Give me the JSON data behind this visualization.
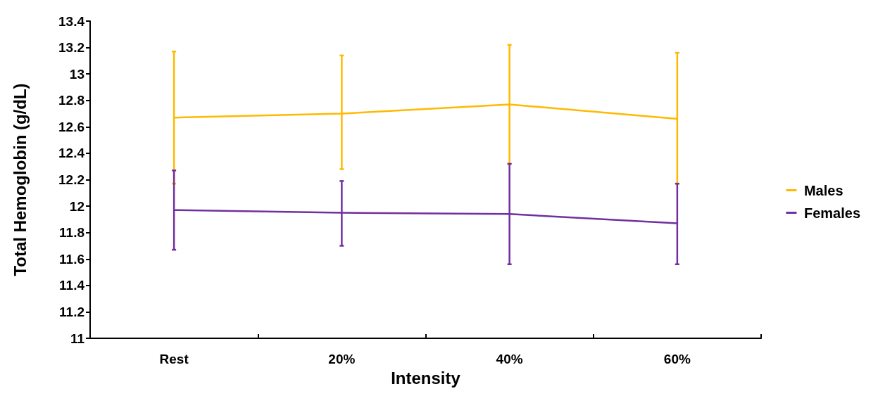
{
  "chart_data": {
    "type": "line",
    "xlabel": "Intensity",
    "ylabel": "Total Hemoglobin (g/dL)",
    "categories": [
      "Rest",
      "20%",
      "40%",
      "60%"
    ],
    "series": [
      {
        "name": "Males",
        "color": "#ffb900",
        "values": [
          12.67,
          12.7,
          12.77,
          12.66
        ],
        "errors": [
          [
            12.17,
            13.17
          ],
          [
            12.28,
            13.14
          ],
          [
            12.32,
            13.22
          ],
          [
            12.17,
            13.16
          ]
        ]
      },
      {
        "name": "Females",
        "color": "#7030a0",
        "values": [
          11.97,
          11.95,
          11.94,
          11.87
        ],
        "errors": [
          [
            11.67,
            12.27
          ],
          [
            11.7,
            12.19
          ],
          [
            11.56,
            12.32
          ],
          [
            11.56,
            12.17
          ]
        ]
      }
    ],
    "ylim": [
      11,
      13.4
    ],
    "yticks": [
      11,
      11.2,
      11.4,
      11.6,
      11.8,
      12,
      12.2,
      12.4,
      12.6,
      12.8,
      13,
      13.2,
      13.4
    ],
    "grid": false,
    "legend": "right",
    "marker": "none",
    "line_style": "solid"
  }
}
